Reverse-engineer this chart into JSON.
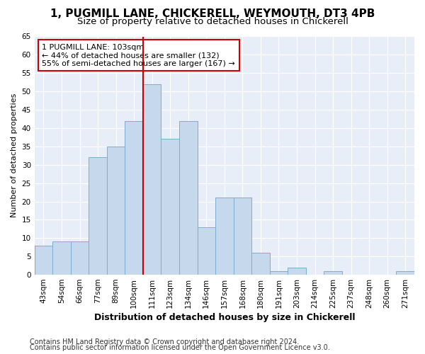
{
  "title1": "1, PUGMILL LANE, CHICKERELL, WEYMOUTH, DT3 4PB",
  "title2": "Size of property relative to detached houses in Chickerell",
  "xlabel": "Distribution of detached houses by size in Chickerell",
  "ylabel": "Number of detached properties",
  "categories": [
    "43sqm",
    "54sqm",
    "66sqm",
    "77sqm",
    "89sqm",
    "100sqm",
    "111sqm",
    "123sqm",
    "134sqm",
    "146sqm",
    "157sqm",
    "168sqm",
    "180sqm",
    "191sqm",
    "203sqm",
    "214sqm",
    "225sqm",
    "237sqm",
    "248sqm",
    "260sqm",
    "271sqm"
  ],
  "values": [
    8,
    9,
    9,
    32,
    35,
    42,
    52,
    37,
    42,
    13,
    21,
    21,
    6,
    1,
    2,
    0,
    1,
    0,
    0,
    0,
    1
  ],
  "bar_color": "#c5d8ec",
  "bar_edge_color": "#7aafcf",
  "vline_x": 5.5,
  "vline_color": "#cc0000",
  "annotation_text": "1 PUGMILL LANE: 103sqm\n← 44% of detached houses are smaller (132)\n55% of semi-detached houses are larger (167) →",
  "annotation_box_color": "#ffffff",
  "annotation_box_edge": "#cc0000",
  "ylim": [
    0,
    65
  ],
  "yticks": [
    0,
    5,
    10,
    15,
    20,
    25,
    30,
    35,
    40,
    45,
    50,
    55,
    60,
    65
  ],
  "footer1": "Contains HM Land Registry data © Crown copyright and database right 2024.",
  "footer2": "Contains public sector information licensed under the Open Government Licence v3.0.",
  "bg_color": "#ffffff",
  "plot_bg_color": "#e8eef8",
  "title1_fontsize": 11,
  "title2_fontsize": 9.5,
  "xlabel_fontsize": 9,
  "ylabel_fontsize": 8,
  "tick_fontsize": 7.5,
  "footer_fontsize": 7,
  "annot_fontsize": 8
}
